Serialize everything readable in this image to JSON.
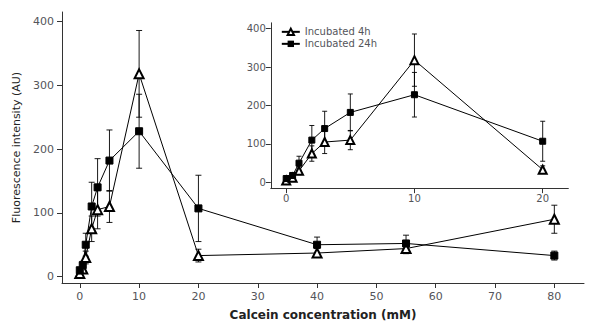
{
  "chart_data": [
    {
      "type": "line",
      "xlabel": "Calcein concentration (mM)",
      "ylabel": "Fluorescence intensity (AU)",
      "xlim": [
        -3,
        85
      ],
      "ylim": [
        -10,
        415
      ],
      "xticks": [
        0,
        10,
        20,
        30,
        40,
        50,
        60,
        70,
        80
      ],
      "yticks": [
        0,
        100,
        200,
        300,
        400
      ],
      "grid": false,
      "x": [
        0,
        0.5,
        1,
        2,
        3,
        5,
        10,
        20,
        40,
        55,
        80
      ],
      "series": [
        {
          "color": "#000000",
          "marker": "triangle_open",
          "values": [
            5,
            12,
            30,
            75,
            105,
            110,
            318,
            33,
            37,
            44,
            90
          ],
          "errors": [
            2,
            4,
            10,
            20,
            30,
            25,
            68,
            10,
            7,
            8,
            22
          ]
        },
        {
          "color": "#000000",
          "marker": "square",
          "values": [
            10,
            18,
            50,
            110,
            140,
            182,
            228,
            107,
            50,
            52,
            33
          ],
          "errors": [
            3,
            6,
            18,
            38,
            45,
            48,
            58,
            52,
            12,
            13,
            7
          ]
        }
      ]
    },
    {
      "type": "line",
      "xlim": [
        -1.2,
        22
      ],
      "ylim": [
        -15,
        415
      ],
      "xticks": [
        0,
        10,
        20
      ],
      "yticks": [
        0,
        100,
        200,
        300,
        400
      ],
      "grid": false,
      "legend": "upper left",
      "x": [
        0,
        0.5,
        1,
        2,
        3,
        5,
        10,
        20
      ],
      "series": [
        {
          "name": "Incubated 4h",
          "color": "#000000",
          "marker": "triangle_open",
          "values": [
            5,
            12,
            30,
            75,
            105,
            110,
            318,
            33
          ],
          "errors": [
            2,
            4,
            10,
            20,
            30,
            25,
            68,
            10
          ]
        },
        {
          "name": "Incubated 24h",
          "color": "#000000",
          "marker": "square",
          "values": [
            10,
            18,
            50,
            110,
            140,
            182,
            228,
            107
          ],
          "errors": [
            3,
            6,
            18,
            38,
            45,
            48,
            58,
            52
          ]
        }
      ]
    }
  ]
}
